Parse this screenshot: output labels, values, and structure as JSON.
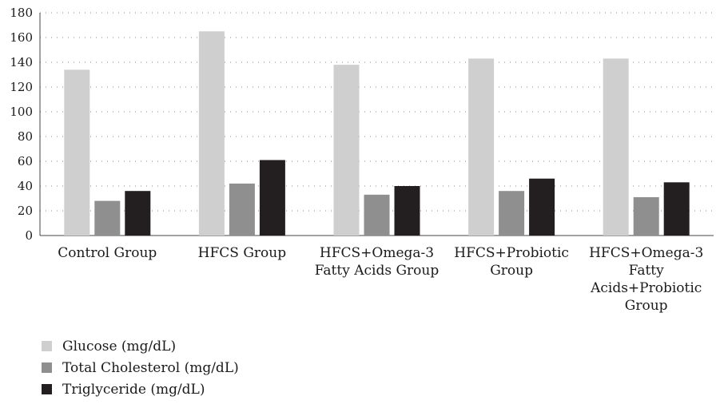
{
  "chart_data": {
    "type": "bar",
    "title": "",
    "xlabel": "",
    "ylabel": "",
    "ylim": [
      0,
      180
    ],
    "yticks": [
      0,
      20,
      40,
      60,
      80,
      100,
      120,
      140,
      160,
      180
    ],
    "grid": true,
    "legend_position": "bottom-left",
    "categories": [
      [
        "Control Group"
      ],
      [
        "HFCS Group"
      ],
      [
        "HFCS+Omega-3",
        "Fatty Acids Group"
      ],
      [
        "HFCS+Probiotic",
        "Group"
      ],
      [
        "HFCS+Omega-3",
        "Fatty",
        "Acids+Probiotic",
        "Group"
      ]
    ],
    "series": [
      {
        "name": "Glucose (mg/dL)",
        "color": "#cfcfcf",
        "values": [
          134,
          165,
          138,
          143,
          143
        ]
      },
      {
        "name": "Total Cholesterol (mg/dL)",
        "color": "#8f8f8f",
        "values": [
          28,
          42,
          33,
          36,
          31
        ]
      },
      {
        "name": "Triglyceride (mg/dL)",
        "color": "#231f20",
        "values": [
          36,
          61,
          40,
          46,
          43
        ]
      }
    ]
  }
}
